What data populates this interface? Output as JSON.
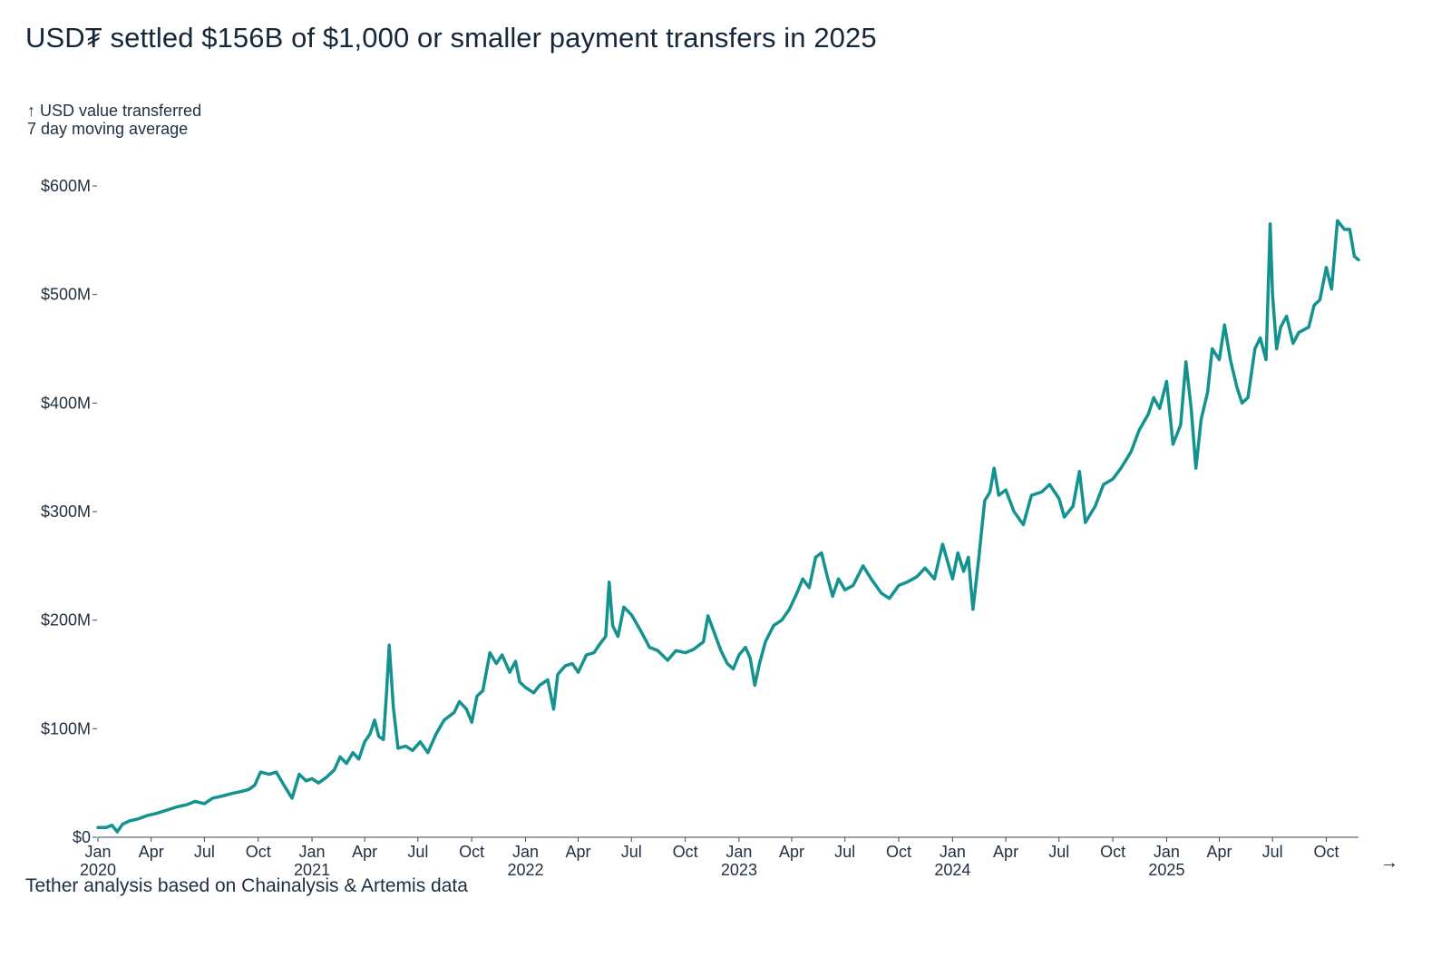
{
  "title": "USD₮ settled $156B of $1,000 or smaller payment transfers in 2025",
  "source": "Tether analysis based on Chainalysis & Artemis data",
  "next_icon": "→",
  "colors": {
    "line": "#13928f",
    "text": "#1f2f40",
    "axis": "#3a4756"
  },
  "chart_data": {
    "type": "line",
    "title": "USD₮ settled $156B of $1,000 or smaller payment transfers in 2025",
    "ylabel": "↑ USD value transferred",
    "ylabel_sub": "7 day moving average",
    "xlabel": "",
    "ylim": [
      0,
      600000000
    ],
    "xlim": [
      "2020-01-01",
      "2025-11-25"
    ],
    "grid": false,
    "legend": "none",
    "y_ticks": [
      {
        "value": 0,
        "label": "$0"
      },
      {
        "value": 100000000,
        "label": "$100M"
      },
      {
        "value": 200000000,
        "label": "$200M"
      },
      {
        "value": 300000000,
        "label": "$300M"
      },
      {
        "value": 400000000,
        "label": "$400M"
      },
      {
        "value": 500000000,
        "label": "$500M"
      },
      {
        "value": 600000000,
        "label": "$600M"
      }
    ],
    "x_ticks": [
      {
        "date": "2020-01-01",
        "label": "Jan",
        "year": "2020"
      },
      {
        "date": "2020-04-01",
        "label": "Apr"
      },
      {
        "date": "2020-07-01",
        "label": "Jul"
      },
      {
        "date": "2020-10-01",
        "label": "Oct"
      },
      {
        "date": "2021-01-01",
        "label": "Jan",
        "year": "2021"
      },
      {
        "date": "2021-04-01",
        "label": "Apr"
      },
      {
        "date": "2021-07-01",
        "label": "Jul"
      },
      {
        "date": "2021-10-01",
        "label": "Oct"
      },
      {
        "date": "2022-01-01",
        "label": "Jan",
        "year": "2022"
      },
      {
        "date": "2022-04-01",
        "label": "Apr"
      },
      {
        "date": "2022-07-01",
        "label": "Jul"
      },
      {
        "date": "2022-10-01",
        "label": "Oct"
      },
      {
        "date": "2023-01-01",
        "label": "Jan",
        "year": "2023"
      },
      {
        "date": "2023-04-01",
        "label": "Apr"
      },
      {
        "date": "2023-07-01",
        "label": "Jul"
      },
      {
        "date": "2023-10-01",
        "label": "Oct"
      },
      {
        "date": "2024-01-01",
        "label": "Jan",
        "year": "2024"
      },
      {
        "date": "2024-04-01",
        "label": "Apr"
      },
      {
        "date": "2024-07-01",
        "label": "Jul"
      },
      {
        "date": "2024-10-01",
        "label": "Oct"
      },
      {
        "date": "2025-01-01",
        "label": "Jan",
        "year": "2025"
      },
      {
        "date": "2025-04-01",
        "label": "Apr"
      },
      {
        "date": "2025-07-01",
        "label": "Jul"
      },
      {
        "date": "2025-10-01",
        "label": "Oct"
      }
    ],
    "series": [
      {
        "points": [
          [
            "2020-01-01",
            9
          ],
          [
            "2020-01-15",
            9
          ],
          [
            "2020-01-25",
            11
          ],
          [
            "2020-02-03",
            5
          ],
          [
            "2020-02-12",
            12
          ],
          [
            "2020-02-24",
            15
          ],
          [
            "2020-03-10",
            17
          ],
          [
            "2020-03-25",
            20
          ],
          [
            "2020-04-10",
            22
          ],
          [
            "2020-04-28",
            25
          ],
          [
            "2020-05-15",
            28
          ],
          [
            "2020-06-01",
            30
          ],
          [
            "2020-06-15",
            33
          ],
          [
            "2020-07-01",
            31
          ],
          [
            "2020-07-15",
            36
          ],
          [
            "2020-08-01",
            38
          ],
          [
            "2020-08-15",
            40
          ],
          [
            "2020-09-01",
            42
          ],
          [
            "2020-09-15",
            44
          ],
          [
            "2020-09-25",
            48
          ],
          [
            "2020-10-05",
            60
          ],
          [
            "2020-10-20",
            58
          ],
          [
            "2020-11-01",
            60
          ],
          [
            "2020-11-15",
            47
          ],
          [
            "2020-11-28",
            36
          ],
          [
            "2020-12-10",
            58
          ],
          [
            "2020-12-22",
            52
          ],
          [
            "2021-01-01",
            54
          ],
          [
            "2021-01-12",
            50
          ],
          [
            "2021-01-25",
            55
          ],
          [
            "2021-02-08",
            62
          ],
          [
            "2021-02-18",
            74
          ],
          [
            "2021-03-01",
            68
          ],
          [
            "2021-03-12",
            78
          ],
          [
            "2021-03-22",
            72
          ],
          [
            "2021-04-01",
            88
          ],
          [
            "2021-04-10",
            95
          ],
          [
            "2021-04-18",
            108
          ],
          [
            "2021-04-25",
            93
          ],
          [
            "2021-05-03",
            90
          ],
          [
            "2021-05-08",
            130
          ],
          [
            "2021-05-13",
            177
          ],
          [
            "2021-05-20",
            120
          ],
          [
            "2021-05-28",
            82
          ],
          [
            "2021-06-10",
            84
          ],
          [
            "2021-06-22",
            80
          ],
          [
            "2021-07-05",
            88
          ],
          [
            "2021-07-18",
            78
          ],
          [
            "2021-08-01",
            95
          ],
          [
            "2021-08-15",
            108
          ],
          [
            "2021-09-01",
            115
          ],
          [
            "2021-09-10",
            125
          ],
          [
            "2021-09-22",
            118
          ],
          [
            "2021-10-01",
            106
          ],
          [
            "2021-10-10",
            130
          ],
          [
            "2021-10-20",
            135
          ],
          [
            "2021-11-01",
            170
          ],
          [
            "2021-11-12",
            160
          ],
          [
            "2021-11-22",
            168
          ],
          [
            "2021-12-05",
            152
          ],
          [
            "2021-12-15",
            162
          ],
          [
            "2021-12-22",
            143
          ],
          [
            "2022-01-01",
            138
          ],
          [
            "2022-01-15",
            133
          ],
          [
            "2022-01-25",
            140
          ],
          [
            "2022-02-08",
            145
          ],
          [
            "2022-02-18",
            118
          ],
          [
            "2022-02-25",
            150
          ],
          [
            "2022-03-10",
            158
          ],
          [
            "2022-03-22",
            160
          ],
          [
            "2022-04-01",
            152
          ],
          [
            "2022-04-15",
            168
          ],
          [
            "2022-04-28",
            170
          ],
          [
            "2022-05-08",
            178
          ],
          [
            "2022-05-18",
            185
          ],
          [
            "2022-05-24",
            235
          ],
          [
            "2022-05-30",
            195
          ],
          [
            "2022-06-08",
            185
          ],
          [
            "2022-06-18",
            212
          ],
          [
            "2022-07-01",
            205
          ],
          [
            "2022-07-15",
            192
          ],
          [
            "2022-08-01",
            175
          ],
          [
            "2022-08-15",
            172
          ],
          [
            "2022-09-01",
            163
          ],
          [
            "2022-09-15",
            172
          ],
          [
            "2022-10-01",
            170
          ],
          [
            "2022-10-15",
            173
          ],
          [
            "2022-11-01",
            180
          ],
          [
            "2022-11-09",
            204
          ],
          [
            "2022-11-20",
            188
          ],
          [
            "2022-12-01",
            172
          ],
          [
            "2022-12-12",
            160
          ],
          [
            "2022-12-22",
            155
          ],
          [
            "2023-01-01",
            168
          ],
          [
            "2023-01-12",
            175
          ],
          [
            "2023-01-20",
            165
          ],
          [
            "2023-01-28",
            140
          ],
          [
            "2023-02-05",
            160
          ],
          [
            "2023-02-15",
            180
          ],
          [
            "2023-03-01",
            195
          ],
          [
            "2023-03-15",
            200
          ],
          [
            "2023-03-28",
            210
          ],
          [
            "2023-04-10",
            225
          ],
          [
            "2023-04-20",
            238
          ],
          [
            "2023-05-01",
            230
          ],
          [
            "2023-05-12",
            258
          ],
          [
            "2023-05-22",
            262
          ],
          [
            "2023-06-01",
            240
          ],
          [
            "2023-06-10",
            222
          ],
          [
            "2023-06-20",
            238
          ],
          [
            "2023-07-01",
            228
          ],
          [
            "2023-07-15",
            232
          ],
          [
            "2023-08-01",
            250
          ],
          [
            "2023-08-15",
            238
          ],
          [
            "2023-09-01",
            225
          ],
          [
            "2023-09-15",
            220
          ],
          [
            "2023-10-01",
            232
          ],
          [
            "2023-10-15",
            235
          ],
          [
            "2023-11-01",
            240
          ],
          [
            "2023-11-15",
            248
          ],
          [
            "2023-12-01",
            238
          ],
          [
            "2023-12-15",
            270
          ],
          [
            "2024-01-01",
            238
          ],
          [
            "2024-01-10",
            262
          ],
          [
            "2024-01-20",
            245
          ],
          [
            "2024-01-28",
            258
          ],
          [
            "2024-02-05",
            210
          ],
          [
            "2024-02-15",
            258
          ],
          [
            "2024-02-25",
            310
          ],
          [
            "2024-03-05",
            318
          ],
          [
            "2024-03-12",
            340
          ],
          [
            "2024-03-20",
            315
          ],
          [
            "2024-04-01",
            320
          ],
          [
            "2024-04-15",
            300
          ],
          [
            "2024-05-01",
            288
          ],
          [
            "2024-05-15",
            315
          ],
          [
            "2024-06-01",
            318
          ],
          [
            "2024-06-15",
            325
          ],
          [
            "2024-07-01",
            312
          ],
          [
            "2024-07-10",
            295
          ],
          [
            "2024-07-25",
            305
          ],
          [
            "2024-08-05",
            337
          ],
          [
            "2024-08-15",
            290
          ],
          [
            "2024-09-01",
            305
          ],
          [
            "2024-09-15",
            325
          ],
          [
            "2024-10-01",
            330
          ],
          [
            "2024-10-15",
            340
          ],
          [
            "2024-11-01",
            355
          ],
          [
            "2024-11-15",
            375
          ],
          [
            "2024-12-01",
            390
          ],
          [
            "2024-12-10",
            405
          ],
          [
            "2024-12-20",
            395
          ],
          [
            "2025-01-01",
            420
          ],
          [
            "2025-01-12",
            362
          ],
          [
            "2025-01-25",
            380
          ],
          [
            "2025-02-03",
            438
          ],
          [
            "2025-02-12",
            395
          ],
          [
            "2025-02-20",
            340
          ],
          [
            "2025-03-01",
            385
          ],
          [
            "2025-03-12",
            410
          ],
          [
            "2025-03-20",
            450
          ],
          [
            "2025-04-01",
            440
          ],
          [
            "2025-04-10",
            472
          ],
          [
            "2025-04-20",
            440
          ],
          [
            "2025-05-01",
            415
          ],
          [
            "2025-05-10",
            400
          ],
          [
            "2025-05-20",
            405
          ],
          [
            "2025-06-01",
            450
          ],
          [
            "2025-06-10",
            460
          ],
          [
            "2025-06-20",
            440
          ],
          [
            "2025-06-27",
            565
          ],
          [
            "2025-07-01",
            500
          ],
          [
            "2025-07-08",
            450
          ],
          [
            "2025-07-15",
            470
          ],
          [
            "2025-07-25",
            480
          ],
          [
            "2025-08-05",
            455
          ],
          [
            "2025-08-15",
            465
          ],
          [
            "2025-09-01",
            470
          ],
          [
            "2025-09-10",
            490
          ],
          [
            "2025-09-20",
            495
          ],
          [
            "2025-10-01",
            525
          ],
          [
            "2025-10-10",
            505
          ],
          [
            "2025-10-20",
            568
          ],
          [
            "2025-11-01",
            560
          ],
          [
            "2025-11-10",
            560
          ],
          [
            "2025-11-18",
            535
          ],
          [
            "2025-11-25",
            532
          ]
        ]
      }
    ]
  }
}
